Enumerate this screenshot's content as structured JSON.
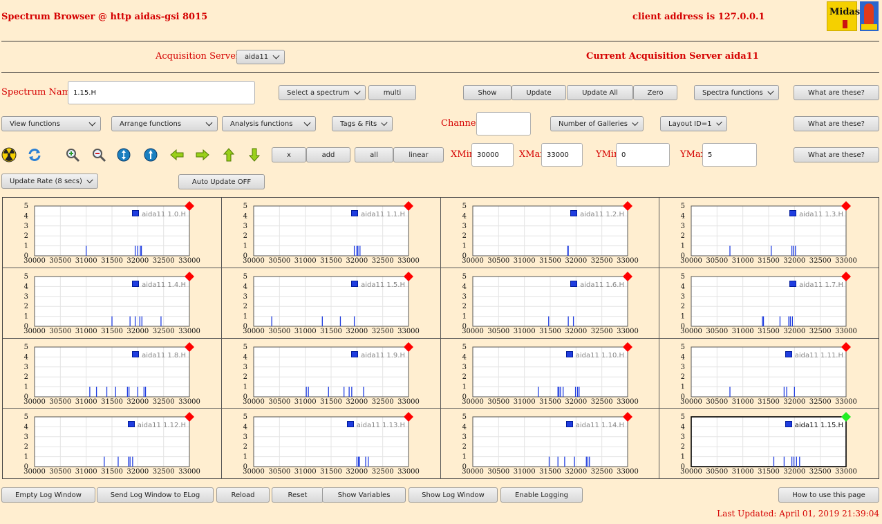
{
  "header": {
    "title": "Spectrum Browser @ http aidas-gsi 8015",
    "client": "client address is 127.0.0.1",
    "logo_text": "Midas"
  },
  "acq": {
    "label": "Acquisition Servers",
    "selected": "aida11",
    "current": "Current Acquisition Server aida11"
  },
  "spectrum": {
    "label": "Spectrum Name:",
    "value": "1.15.H",
    "select_label": "Select a spectrum",
    "multi": "multi",
    "show": "Show",
    "update": "Update",
    "update_all": "Update All",
    "zero": "Zero",
    "spectra_functions": "Spectra functions",
    "what": "What are these?"
  },
  "functions": {
    "view": "View functions",
    "arrange": "Arrange functions",
    "analysis": "Analysis functions",
    "tags": "Tags & Fits",
    "channel_label": "Channel:",
    "channel_value": "",
    "galleries": "Number of Galleries",
    "layout": "Layout ID=1",
    "what": "What are these?"
  },
  "tools": {
    "icons": [
      "radiation-icon",
      "refresh-icon",
      "zoom-in-icon",
      "zoom-out-icon",
      "expand-y-icon",
      "expand-x-icon",
      "arrow-left-icon",
      "arrow-right-icon",
      "arrow-up-icon",
      "arrow-down-icon"
    ],
    "x": "x",
    "add": "add",
    "all": "all",
    "linear": "linear",
    "xmin_label": "XMin",
    "xmin": "30000",
    "xmax_label": "XMax",
    "xmax": "33000",
    "ymin_label": "YMin",
    "ymin": "0",
    "ymax_label": "YMax",
    "ymax": "5",
    "what": "What are these?"
  },
  "rate": {
    "update_rate": "Update Rate (8 secs)",
    "auto_update": "Auto Update OFF"
  },
  "colors": {
    "background": "#ffeed0",
    "red_text": "#d50000",
    "series": "#1f3de0",
    "stale_marker": "#ff0000",
    "fresh_marker": "#22ee22"
  },
  "chart_data": [
    {
      "type": "bar",
      "series": [
        {
          "name": "aida11 1.0.H",
          "x": [
            31000,
            31950,
            32000,
            32050,
            32070
          ],
          "y": [
            1,
            1,
            1,
            1,
            1
          ]
        }
      ],
      "xlim": [
        30000,
        33000
      ],
      "ylim": [
        0,
        5
      ],
      "xticks": [
        30000,
        30500,
        31000,
        31500,
        32000,
        32500,
        33000
      ],
      "yticks": [
        0,
        1,
        2,
        3,
        4,
        5
      ],
      "grid": true,
      "legend": "top-right",
      "status": "stale"
    },
    {
      "type": "bar",
      "series": [
        {
          "name": "aida11 1.1.H",
          "x": [
            31950,
            32000,
            32020,
            32060
          ],
          "y": [
            1,
            1,
            1,
            1
          ]
        }
      ],
      "xlim": [
        30000,
        33000
      ],
      "ylim": [
        0,
        5
      ],
      "xticks": [
        30000,
        30500,
        31000,
        31500,
        32000,
        32500,
        33000
      ],
      "yticks": [
        0,
        1,
        2,
        3,
        4,
        5
      ],
      "grid": true,
      "legend": "top-right",
      "status": "stale"
    },
    {
      "type": "bar",
      "series": [
        {
          "name": "aida11 1.2.H",
          "x": [
            31840,
            31850
          ],
          "y": [
            1,
            1
          ]
        }
      ],
      "xlim": [
        30000,
        33000
      ],
      "ylim": [
        0,
        5
      ],
      "xticks": [
        30000,
        30500,
        31000,
        31500,
        32000,
        32500,
        33000
      ],
      "yticks": [
        0,
        1,
        2,
        3,
        4,
        5
      ],
      "grid": true,
      "legend": "top-right",
      "status": "stale"
    },
    {
      "type": "bar",
      "series": [
        {
          "name": "aida11 1.3.H",
          "x": [
            30750,
            31550,
            31950,
            31980,
            32020
          ],
          "y": [
            1,
            1,
            1,
            1,
            1
          ]
        }
      ],
      "xlim": [
        30000,
        33000
      ],
      "ylim": [
        0,
        5
      ],
      "xticks": [
        30000,
        30500,
        31000,
        31500,
        32000,
        32500,
        33000
      ],
      "yticks": [
        0,
        1,
        2,
        3,
        4,
        5
      ],
      "grid": true,
      "legend": "top-right",
      "status": "stale"
    },
    {
      "type": "bar",
      "series": [
        {
          "name": "aida11 1.4.H",
          "x": [
            31500,
            31850,
            31950,
            32040,
            32080,
            32450
          ],
          "y": [
            1,
            1,
            1,
            1,
            1,
            1
          ]
        }
      ],
      "xlim": [
        30000,
        33000
      ],
      "ylim": [
        0,
        5
      ],
      "xticks": [
        30000,
        30500,
        31000,
        31500,
        32000,
        32500,
        33000
      ],
      "yticks": [
        0,
        1,
        2,
        3,
        4,
        5
      ],
      "grid": true,
      "legend": "top-right",
      "status": "stale"
    },
    {
      "type": "bar",
      "series": [
        {
          "name": "aida11 1.5.H",
          "x": [
            30350,
            31330,
            31680,
            31950
          ],
          "y": [
            1,
            1,
            1,
            1
          ]
        }
      ],
      "xlim": [
        30000,
        33000
      ],
      "ylim": [
        0,
        5
      ],
      "xticks": [
        30000,
        30500,
        31000,
        31500,
        32000,
        32500,
        33000
      ],
      "yticks": [
        0,
        1,
        2,
        3,
        4,
        5
      ],
      "grid": true,
      "legend": "top-right",
      "status": "stale"
    },
    {
      "type": "bar",
      "series": [
        {
          "name": "aida11 1.6.H",
          "x": [
            31470,
            31850,
            31950
          ],
          "y": [
            1,
            1,
            1
          ]
        }
      ],
      "xlim": [
        30000,
        33000
      ],
      "ylim": [
        0,
        5
      ],
      "xticks": [
        30000,
        30500,
        31000,
        31500,
        32000,
        32500,
        33000
      ],
      "yticks": [
        0,
        1,
        2,
        3,
        4,
        5
      ],
      "grid": true,
      "legend": "top-right",
      "status": "stale"
    },
    {
      "type": "bar",
      "series": [
        {
          "name": "aida11 1.7.H",
          "x": [
            31380,
            31400,
            31720,
            31890,
            31920,
            31960
          ],
          "y": [
            1,
            1,
            1,
            1,
            1,
            1
          ]
        }
      ],
      "xlim": [
        30000,
        33000
      ],
      "ylim": [
        0,
        5
      ],
      "xticks": [
        30000,
        30500,
        31000,
        31500,
        32000,
        32500,
        33000
      ],
      "yticks": [
        0,
        1,
        2,
        3,
        4,
        5
      ],
      "grid": true,
      "legend": "top-right",
      "status": "stale"
    },
    {
      "type": "bar",
      "series": [
        {
          "name": "aida11 1.8.H",
          "x": [
            31070,
            31200,
            31400,
            31570,
            31800,
            31830,
            32000,
            32120,
            32150
          ],
          "y": [
            1,
            1,
            1,
            1,
            1,
            1,
            1,
            1,
            1
          ]
        }
      ],
      "xlim": [
        30000,
        33000
      ],
      "ylim": [
        0,
        5
      ],
      "xticks": [
        30000,
        30500,
        31000,
        31500,
        32000,
        32500,
        33000
      ],
      "yticks": [
        0,
        1,
        2,
        3,
        4,
        5
      ],
      "grid": true,
      "legend": "top-right",
      "status": "stale"
    },
    {
      "type": "bar",
      "series": [
        {
          "name": "aida11 1.9.H",
          "x": [
            31020,
            31060,
            31450,
            31750,
            31850,
            31900,
            32130
          ],
          "y": [
            1,
            1,
            1,
            1,
            1,
            1,
            1
          ]
        }
      ],
      "xlim": [
        30000,
        33000
      ],
      "ylim": [
        0,
        5
      ],
      "xticks": [
        30000,
        30500,
        31000,
        31500,
        32000,
        32500,
        33000
      ],
      "yticks": [
        0,
        1,
        2,
        3,
        4,
        5
      ],
      "grid": true,
      "legend": "top-right",
      "status": "stale"
    },
    {
      "type": "bar",
      "series": [
        {
          "name": "aida11 1.10.H",
          "x": [
            31270,
            31650,
            31670,
            31700,
            31750,
            31990,
            32030,
            32060
          ],
          "y": [
            1,
            1,
            1,
            1,
            1,
            1,
            1,
            1
          ]
        }
      ],
      "xlim": [
        30000,
        33000
      ],
      "ylim": [
        0,
        5
      ],
      "xticks": [
        30000,
        30500,
        31000,
        31500,
        32000,
        32500,
        33000
      ],
      "yticks": [
        0,
        1,
        2,
        3,
        4,
        5
      ],
      "grid": true,
      "legend": "top-right",
      "status": "stale"
    },
    {
      "type": "bar",
      "series": [
        {
          "name": "aida11 1.11.H",
          "x": [
            30750,
            31800,
            31850,
            32000
          ],
          "y": [
            1,
            1,
            1,
            1
          ]
        }
      ],
      "xlim": [
        30000,
        33000
      ],
      "ylim": [
        0,
        5
      ],
      "xticks": [
        30000,
        30500,
        31000,
        31500,
        32000,
        32500,
        33000
      ],
      "yticks": [
        0,
        1,
        2,
        3,
        4,
        5
      ],
      "grid": true,
      "legend": "top-right",
      "status": "stale"
    },
    {
      "type": "bar",
      "series": [
        {
          "name": "aida11 1.12.H",
          "x": [
            31350,
            31620,
            31820,
            31850,
            31900
          ],
          "y": [
            1,
            1,
            1,
            1,
            1
          ]
        }
      ],
      "xlim": [
        30000,
        33000
      ],
      "ylim": [
        0,
        5
      ],
      "xticks": [
        30000,
        30500,
        31000,
        31500,
        32000,
        32500,
        33000
      ],
      "yticks": [
        0,
        1,
        2,
        3,
        4,
        5
      ],
      "grid": true,
      "legend": "top-right",
      "status": "stale"
    },
    {
      "type": "bar",
      "series": [
        {
          "name": "aida11 1.13.H",
          "x": [
            32000,
            32030,
            32050,
            32170,
            32220
          ],
          "y": [
            1,
            1,
            1,
            1,
            1
          ]
        }
      ],
      "xlim": [
        30000,
        33000
      ],
      "ylim": [
        0,
        5
      ],
      "xticks": [
        30000,
        30500,
        31000,
        31500,
        32000,
        32500,
        33000
      ],
      "yticks": [
        0,
        1,
        2,
        3,
        4,
        5
      ],
      "grid": true,
      "legend": "top-right",
      "status": "stale"
    },
    {
      "type": "bar",
      "series": [
        {
          "name": "aida11 1.14.H",
          "x": [
            31480,
            31650,
            31780,
            31970,
            32200,
            32230,
            32260
          ],
          "y": [
            1,
            1,
            1,
            1,
            1,
            1,
            1
          ]
        }
      ],
      "xlim": [
        30000,
        33000
      ],
      "ylim": [
        0,
        5
      ],
      "xticks": [
        30000,
        30500,
        31000,
        31500,
        32000,
        32500,
        33000
      ],
      "yticks": [
        0,
        1,
        2,
        3,
        4,
        5
      ],
      "grid": true,
      "legend": "top-right",
      "status": "stale"
    },
    {
      "type": "bar",
      "series": [
        {
          "name": "aida11 1.15.H",
          "x": [
            31600,
            31800,
            31950,
            31990,
            32040,
            32100
          ],
          "y": [
            1,
            1,
            1,
            1,
            1,
            1
          ]
        }
      ],
      "xlim": [
        30000,
        33000
      ],
      "ylim": [
        0,
        5
      ],
      "xticks": [
        30000,
        30500,
        31000,
        31500,
        32000,
        32500,
        33000
      ],
      "yticks": [
        0,
        1,
        2,
        3,
        4,
        5
      ],
      "grid": true,
      "legend": "top-right",
      "status": "fresh"
    }
  ],
  "footer": {
    "empty_log": "Empty Log Window",
    "send_log": "Send Log Window to ELog",
    "reload": "Reload",
    "reset": "Reset",
    "show_vars": "Show Variables",
    "show_log": "Show Log Window",
    "enable_logging": "Enable Logging",
    "how_to": "How to use this page",
    "last_updated": "Last Updated: April 01, 2019 21:39:04"
  }
}
